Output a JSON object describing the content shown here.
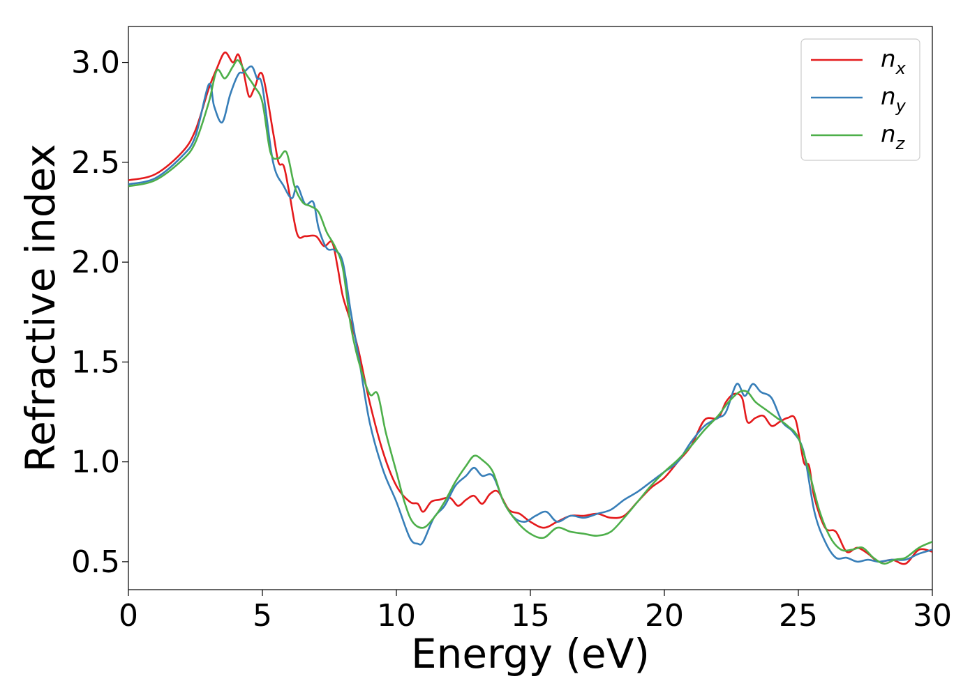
{
  "chart_data": {
    "type": "line",
    "title": "",
    "xlabel": "Energy (eV)",
    "ylabel": "Refractive index",
    "xlim": [
      0,
      30
    ],
    "ylim": [
      0.36,
      3.18
    ],
    "xticks": [
      0,
      5,
      10,
      15,
      20,
      25,
      30
    ],
    "xtick_labels": [
      "0",
      "5",
      "10",
      "15",
      "20",
      "25",
      "30"
    ],
    "yticks": [
      0.5,
      1.0,
      1.5,
      2.0,
      2.5,
      3.0
    ],
    "ytick_labels": [
      "0.5",
      "1.0",
      "1.5",
      "2.0",
      "2.5",
      "3.0"
    ],
    "grid": false,
    "legend_position": "top-right",
    "series": [
      {
        "name": "n",
        "subscript": "x",
        "color": "#e41a1c",
        "x": [
          0,
          1,
          2,
          2.5,
          3,
          3.3,
          3.6,
          3.9,
          4.1,
          4.3,
          4.5,
          4.7,
          5,
          5.4,
          5.6,
          5.8,
          6,
          6.3,
          6.6,
          7,
          7.3,
          7.6,
          7.8,
          8,
          8.3,
          8.6,
          9,
          9.5,
          10,
          10.5,
          10.8,
          11,
          11.3,
          11.6,
          12,
          12.3,
          12.6,
          12.9,
          13.2,
          13.5,
          13.8,
          14.2,
          14.6,
          15,
          15.5,
          16,
          16.5,
          17,
          17.5,
          18,
          18.5,
          19,
          19.5,
          20,
          20.5,
          21,
          21.5,
          22,
          22.3,
          22.6,
          22.9,
          23.1,
          23.4,
          23.7,
          24,
          24.3,
          24.6,
          24.9,
          25.2,
          25.4,
          25.6,
          26,
          26.4,
          26.8,
          27.2,
          27.6,
          28,
          28.5,
          29,
          29.5,
          30
        ],
        "y": [
          2.41,
          2.44,
          2.55,
          2.66,
          2.87,
          2.97,
          3.05,
          3.0,
          3.04,
          2.95,
          2.83,
          2.87,
          2.94,
          2.65,
          2.5,
          2.48,
          2.35,
          2.14,
          2.13,
          2.13,
          2.08,
          2.1,
          1.98,
          1.83,
          1.7,
          1.55,
          1.3,
          1.05,
          0.88,
          0.8,
          0.79,
          0.75,
          0.8,
          0.81,
          0.82,
          0.78,
          0.81,
          0.83,
          0.79,
          0.84,
          0.85,
          0.76,
          0.74,
          0.7,
          0.67,
          0.7,
          0.73,
          0.73,
          0.74,
          0.72,
          0.73,
          0.8,
          0.87,
          0.92,
          1.0,
          1.08,
          1.21,
          1.22,
          1.3,
          1.34,
          1.32,
          1.2,
          1.22,
          1.23,
          1.18,
          1.2,
          1.22,
          1.21,
          1.0,
          0.98,
          0.82,
          0.67,
          0.65,
          0.55,
          0.57,
          0.54,
          0.5,
          0.51,
          0.49,
          0.56,
          0.55
        ]
      },
      {
        "name": "n",
        "subscript": "y",
        "color": "#377eb8",
        "x": [
          0,
          1,
          2,
          2.5,
          3,
          3.2,
          3.5,
          3.8,
          4.1,
          4.3,
          4.6,
          4.8,
          5,
          5.4,
          5.8,
          6.1,
          6.3,
          6.6,
          6.9,
          7.1,
          7.4,
          7.7,
          8,
          8.3,
          8.6,
          9,
          9.5,
          10,
          10.5,
          10.8,
          11,
          11.4,
          11.8,
          12.2,
          12.6,
          12.9,
          13.2,
          13.6,
          14,
          14.4,
          14.8,
          15.2,
          15.6,
          16,
          16.5,
          17,
          17.5,
          18,
          18.5,
          19,
          19.5,
          20,
          20.5,
          21,
          21.5,
          22,
          22.3,
          22.7,
          23,
          23.3,
          23.6,
          24,
          24.4,
          24.8,
          25.2,
          25.6,
          26,
          26.4,
          26.8,
          27.2,
          27.6,
          28,
          28.5,
          29,
          29.5,
          30
        ],
        "y": [
          2.39,
          2.42,
          2.53,
          2.63,
          2.89,
          2.78,
          2.7,
          2.84,
          2.94,
          2.95,
          2.98,
          2.92,
          2.88,
          2.5,
          2.38,
          2.32,
          2.38,
          2.29,
          2.3,
          2.17,
          2.07,
          2.06,
          2.0,
          1.75,
          1.52,
          1.2,
          0.96,
          0.8,
          0.62,
          0.59,
          0.6,
          0.72,
          0.78,
          0.88,
          0.93,
          0.97,
          0.93,
          0.93,
          0.8,
          0.72,
          0.7,
          0.73,
          0.75,
          0.7,
          0.73,
          0.72,
          0.74,
          0.76,
          0.81,
          0.85,
          0.9,
          0.95,
          1.0,
          1.1,
          1.18,
          1.22,
          1.25,
          1.39,
          1.33,
          1.39,
          1.35,
          1.32,
          1.2,
          1.15,
          1.05,
          0.75,
          0.6,
          0.52,
          0.52,
          0.5,
          0.51,
          0.5,
          0.51,
          0.51,
          0.54,
          0.56
        ]
      },
      {
        "name": "n",
        "subscript": "z",
        "color": "#4daf4a",
        "x": [
          0,
          1,
          2,
          2.5,
          3,
          3.3,
          3.6,
          3.9,
          4.1,
          4.4,
          4.7,
          5,
          5.3,
          5.6,
          5.9,
          6.2,
          6.5,
          6.8,
          7.1,
          7.4,
          7.7,
          8,
          8.3,
          8.6,
          9,
          9.3,
          9.6,
          10,
          10.3,
          10.6,
          11,
          11.4,
          11.8,
          12.2,
          12.6,
          12.9,
          13.2,
          13.6,
          14,
          14.5,
          15,
          15.5,
          16,
          16.5,
          17,
          17.5,
          18,
          18.5,
          19,
          19.5,
          20,
          20.5,
          21,
          21.5,
          22,
          22.4,
          22.8,
          23.1,
          23.4,
          23.8,
          24.2,
          24.6,
          25,
          25.4,
          25.8,
          26.2,
          26.6,
          27,
          27.4,
          27.8,
          28.2,
          28.6,
          29,
          29.5,
          30
        ],
        "y": [
          2.38,
          2.41,
          2.51,
          2.6,
          2.8,
          2.96,
          2.92,
          2.98,
          3.01,
          2.94,
          2.88,
          2.8,
          2.55,
          2.52,
          2.55,
          2.38,
          2.3,
          2.28,
          2.25,
          2.15,
          2.08,
          1.97,
          1.68,
          1.5,
          1.34,
          1.34,
          1.15,
          0.95,
          0.8,
          0.7,
          0.67,
          0.72,
          0.8,
          0.9,
          0.98,
          1.03,
          1.01,
          0.95,
          0.8,
          0.7,
          0.64,
          0.62,
          0.67,
          0.65,
          0.64,
          0.63,
          0.65,
          0.72,
          0.8,
          0.88,
          0.95,
          1.01,
          1.08,
          1.16,
          1.23,
          1.3,
          1.35,
          1.35,
          1.3,
          1.26,
          1.22,
          1.18,
          1.12,
          0.95,
          0.75,
          0.62,
          0.56,
          0.56,
          0.57,
          0.52,
          0.49,
          0.51,
          0.52,
          0.57,
          0.6
        ]
      }
    ]
  }
}
